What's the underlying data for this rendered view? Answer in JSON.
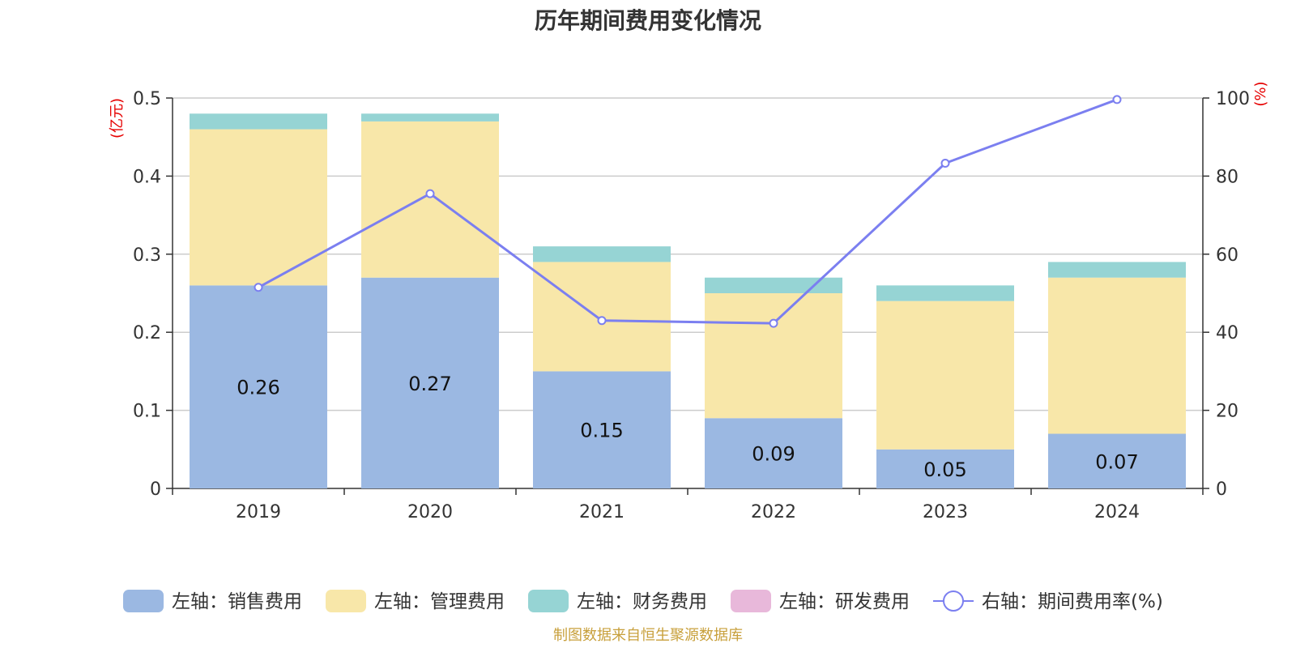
{
  "chart_data": {
    "type": "bar",
    "title": "历年期间费用变化情况",
    "categories": [
      "2019",
      "2020",
      "2021",
      "2022",
      "2023",
      "2024"
    ],
    "left_axis": {
      "unit": "(亿元)",
      "ylim": [
        0,
        0.5
      ],
      "ticks": [
        "0",
        "0.1",
        "0.2",
        "0.3",
        "0.4",
        "0.5"
      ]
    },
    "right_axis": {
      "unit": "(%)",
      "ylim": [
        0,
        100
      ],
      "ticks": [
        "0",
        "20",
        "40",
        "60",
        "80",
        "100"
      ]
    },
    "series": [
      {
        "name": "左轴：销售费用",
        "kind": "bar",
        "axis": "left",
        "color": "#9bb8e2",
        "values": [
          0.26,
          0.27,
          0.15,
          0.09,
          0.05,
          0.07
        ],
        "labels": [
          "0.26",
          "0.27",
          "0.15",
          "0.09",
          "0.05",
          "0.07"
        ]
      },
      {
        "name": "左轴：管理费用",
        "kind": "bar",
        "axis": "left",
        "color": "#f8e7a9",
        "values": [
          0.2,
          0.2,
          0.14,
          0.16,
          0.19,
          0.2
        ]
      },
      {
        "name": "左轴：财务费用",
        "kind": "bar",
        "axis": "left",
        "color": "#96d4d4",
        "values": [
          0.02,
          0.01,
          0.02,
          0.02,
          0.02,
          0.02
        ]
      },
      {
        "name": "左轴：研发费用",
        "kind": "bar",
        "axis": "left",
        "color": "#e8b8da",
        "values": [
          0,
          0,
          0,
          0,
          0,
          0
        ]
      },
      {
        "name": "右轴：期间费用率(%)",
        "kind": "line",
        "axis": "right",
        "color": "#7b7ff0",
        "values": [
          51.5,
          75.5,
          43,
          42.3,
          83.3,
          99.6
        ]
      }
    ],
    "grid": true,
    "legend": "bottom"
  },
  "footer": "制图数据来自恒生聚源数据库"
}
